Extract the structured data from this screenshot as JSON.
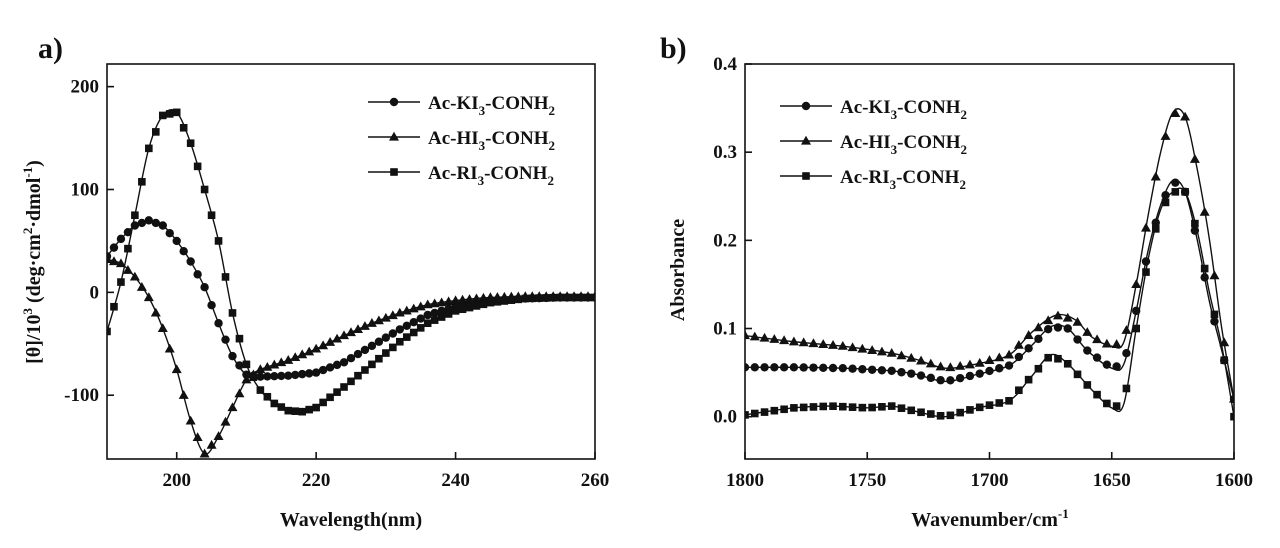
{
  "figure": {
    "panels": [
      {
        "label": "a)"
      },
      {
        "label": "b)"
      }
    ]
  },
  "chart_data": [
    {
      "type": "line",
      "panel": "a)",
      "xlabel": "Wavelength(nm)",
      "ylabel": "[θ]/10³ (deg·cm²·dmol⁻¹)",
      "ylabel_parts": {
        "a": "[θ]/10",
        "b": "3",
        "c": " (deg·cm",
        "d": "2",
        "e": "·dmol",
        "f": "-1",
        "g": ")"
      },
      "xlim": [
        190,
        260
      ],
      "ylim": [
        -162,
        222
      ],
      "xticks": [
        200,
        220,
        240,
        260
      ],
      "yticks": [
        -100,
        0,
        100,
        200
      ],
      "grid": false,
      "legend_position": "top-right",
      "series": [
        {
          "name": "Ac-KI3-CONH2",
          "legend": {
            "a": "Ac-KI",
            "b": "3",
            "c": "-CONH",
            "d": "2"
          },
          "marker": "circle",
          "points": [
            [
              190,
              35
            ],
            [
              192,
              52
            ],
            [
              194,
              65
            ],
            [
              196,
              70
            ],
            [
              198,
              65
            ],
            [
              200,
              50
            ],
            [
              202,
              30
            ],
            [
              204,
              5
            ],
            [
              206,
              -30
            ],
            [
              208,
              -62
            ],
            [
              210,
              -80
            ],
            [
              212,
              -82
            ],
            [
              216,
              -81
            ],
            [
              220,
              -78
            ],
            [
              224,
              -68
            ],
            [
              228,
              -52
            ],
            [
              232,
              -36
            ],
            [
              236,
              -22
            ],
            [
              240,
              -14
            ],
            [
              245,
              -8
            ],
            [
              250,
              -6
            ],
            [
              255,
              -5
            ],
            [
              260,
              -5
            ]
          ]
        },
        {
          "name": "Ac-HI3-CONH2",
          "legend": {
            "a": "Ac-HI",
            "b": "3",
            "c": "-CONH",
            "d": "2"
          },
          "marker": "triangle",
          "points": [
            [
              190,
              32
            ],
            [
              192,
              28
            ],
            [
              194,
              15
            ],
            [
              196,
              -5
            ],
            [
              198,
              -35
            ],
            [
              200,
              -75
            ],
            [
              202,
              -125
            ],
            [
              204,
              -157
            ],
            [
              206,
              -140
            ],
            [
              208,
              -112
            ],
            [
              210,
              -85
            ],
            [
              212,
              -75
            ],
            [
              216,
              -66
            ],
            [
              220,
              -55
            ],
            [
              224,
              -42
            ],
            [
              228,
              -30
            ],
            [
              232,
              -20
            ],
            [
              236,
              -12
            ],
            [
              240,
              -8
            ],
            [
              245,
              -5
            ],
            [
              250,
              -4
            ],
            [
              255,
              -4
            ],
            [
              260,
              -4
            ]
          ]
        },
        {
          "name": "Ac-RI3-CONH2",
          "legend": {
            "a": "Ac-RI",
            "b": "3",
            "c": "-CONH",
            "d": "2"
          },
          "marker": "square",
          "points": [
            [
              190,
              -38
            ],
            [
              192,
              10
            ],
            [
              194,
              75
            ],
            [
              196,
              140
            ],
            [
              198,
              172
            ],
            [
              200,
              175
            ],
            [
              202,
              145
            ],
            [
              204,
              100
            ],
            [
              206,
              50
            ],
            [
              208,
              -20
            ],
            [
              210,
              -70
            ],
            [
              212,
              -95
            ],
            [
              214,
              -108
            ],
            [
              216,
              -115
            ],
            [
              218,
              -116
            ],
            [
              220,
              -112
            ],
            [
              224,
              -92
            ],
            [
              228,
              -70
            ],
            [
              232,
              -48
            ],
            [
              236,
              -30
            ],
            [
              240,
              -18
            ],
            [
              245,
              -10
            ],
            [
              250,
              -6
            ],
            [
              255,
              -5
            ],
            [
              260,
              -5
            ]
          ]
        }
      ]
    },
    {
      "type": "line",
      "panel": "b)",
      "xlabel": "Wavenumber/cm⁻¹",
      "xlabel_parts": {
        "a": "Wavenumber/cm",
        "b": "-1"
      },
      "ylabel": "Absorbance",
      "xlim": [
        1800,
        1600
      ],
      "ylim": [
        -0.048,
        0.4
      ],
      "xticks": [
        1800,
        1750,
        1700,
        1650,
        1600
      ],
      "yticks": [
        0.0,
        0.1,
        0.2,
        0.3,
        0.4
      ],
      "ytick_labels": [
        "0.0",
        "0.1",
        "0.2",
        "0.3",
        "0.4"
      ],
      "grid": false,
      "legend_position": "top-left",
      "series": [
        {
          "name": "Ac-KI3-CONH2",
          "legend": {
            "a": "Ac-KI",
            "b": "3",
            "c": "-CONH",
            "d": "2"
          },
          "marker": "circle",
          "points": [
            [
              1800,
              0.056
            ],
            [
              1780,
              0.056
            ],
            [
              1760,
              0.055
            ],
            [
              1740,
              0.052
            ],
            [
              1730,
              0.048
            ],
            [
              1718,
              0.04
            ],
            [
              1705,
              0.048
            ],
            [
              1692,
              0.058
            ],
            [
              1683,
              0.08
            ],
            [
              1675,
              0.102
            ],
            [
              1668,
              0.1
            ],
            [
              1660,
              0.075
            ],
            [
              1650,
              0.055
            ],
            [
              1645,
              0.06
            ],
            [
              1640,
              0.12
            ],
            [
              1635,
              0.19
            ],
            [
              1630,
              0.24
            ],
            [
              1625,
              0.268
            ],
            [
              1620,
              0.255
            ],
            [
              1615,
              0.2
            ],
            [
              1610,
              0.13
            ],
            [
              1605,
              0.075
            ],
            [
              1600,
              0.02
            ]
          ]
        },
        {
          "name": "Ac-HI3-CONH2",
          "legend": {
            "a": "Ac-HI",
            "b": "3",
            "c": "-CONH",
            "d": "2"
          },
          "marker": "triangle",
          "points": [
            [
              1800,
              0.092
            ],
            [
              1780,
              0.085
            ],
            [
              1760,
              0.08
            ],
            [
              1740,
              0.072
            ],
            [
              1730,
              0.065
            ],
            [
              1718,
              0.055
            ],
            [
              1705,
              0.06
            ],
            [
              1692,
              0.07
            ],
            [
              1683,
              0.095
            ],
            [
              1673,
              0.115
            ],
            [
              1665,
              0.11
            ],
            [
              1658,
              0.09
            ],
            [
              1650,
              0.08
            ],
            [
              1645,
              0.085
            ],
            [
              1640,
              0.15
            ],
            [
              1635,
              0.23
            ],
            [
              1630,
              0.3
            ],
            [
              1625,
              0.345
            ],
            [
              1620,
              0.34
            ],
            [
              1615,
              0.28
            ],
            [
              1610,
              0.2
            ],
            [
              1605,
              0.1
            ],
            [
              1600,
              0.02
            ]
          ]
        },
        {
          "name": "Ac-RI3-CONH2",
          "legend": {
            "a": "Ac-RI",
            "b": "3",
            "c": "-CONH",
            "d": "2"
          },
          "marker": "square",
          "points": [
            [
              1800,
              0.002
            ],
            [
              1780,
              0.01
            ],
            [
              1765,
              0.012
            ],
            [
              1750,
              0.01
            ],
            [
              1740,
              0.012
            ],
            [
              1730,
              0.006
            ],
            [
              1718,
              0.0
            ],
            [
              1705,
              0.01
            ],
            [
              1692,
              0.018
            ],
            [
              1683,
              0.045
            ],
            [
              1675,
              0.07
            ],
            [
              1668,
              0.06
            ],
            [
              1658,
              0.03
            ],
            [
              1650,
              0.01
            ],
            [
              1645,
              0.015
            ],
            [
              1640,
              0.1
            ],
            [
              1635,
              0.18
            ],
            [
              1630,
              0.235
            ],
            [
              1625,
              0.255
            ],
            [
              1620,
              0.255
            ],
            [
              1615,
              0.21
            ],
            [
              1610,
              0.14
            ],
            [
              1605,
              0.08
            ],
            [
              1600,
              0.0
            ]
          ]
        }
      ]
    }
  ]
}
